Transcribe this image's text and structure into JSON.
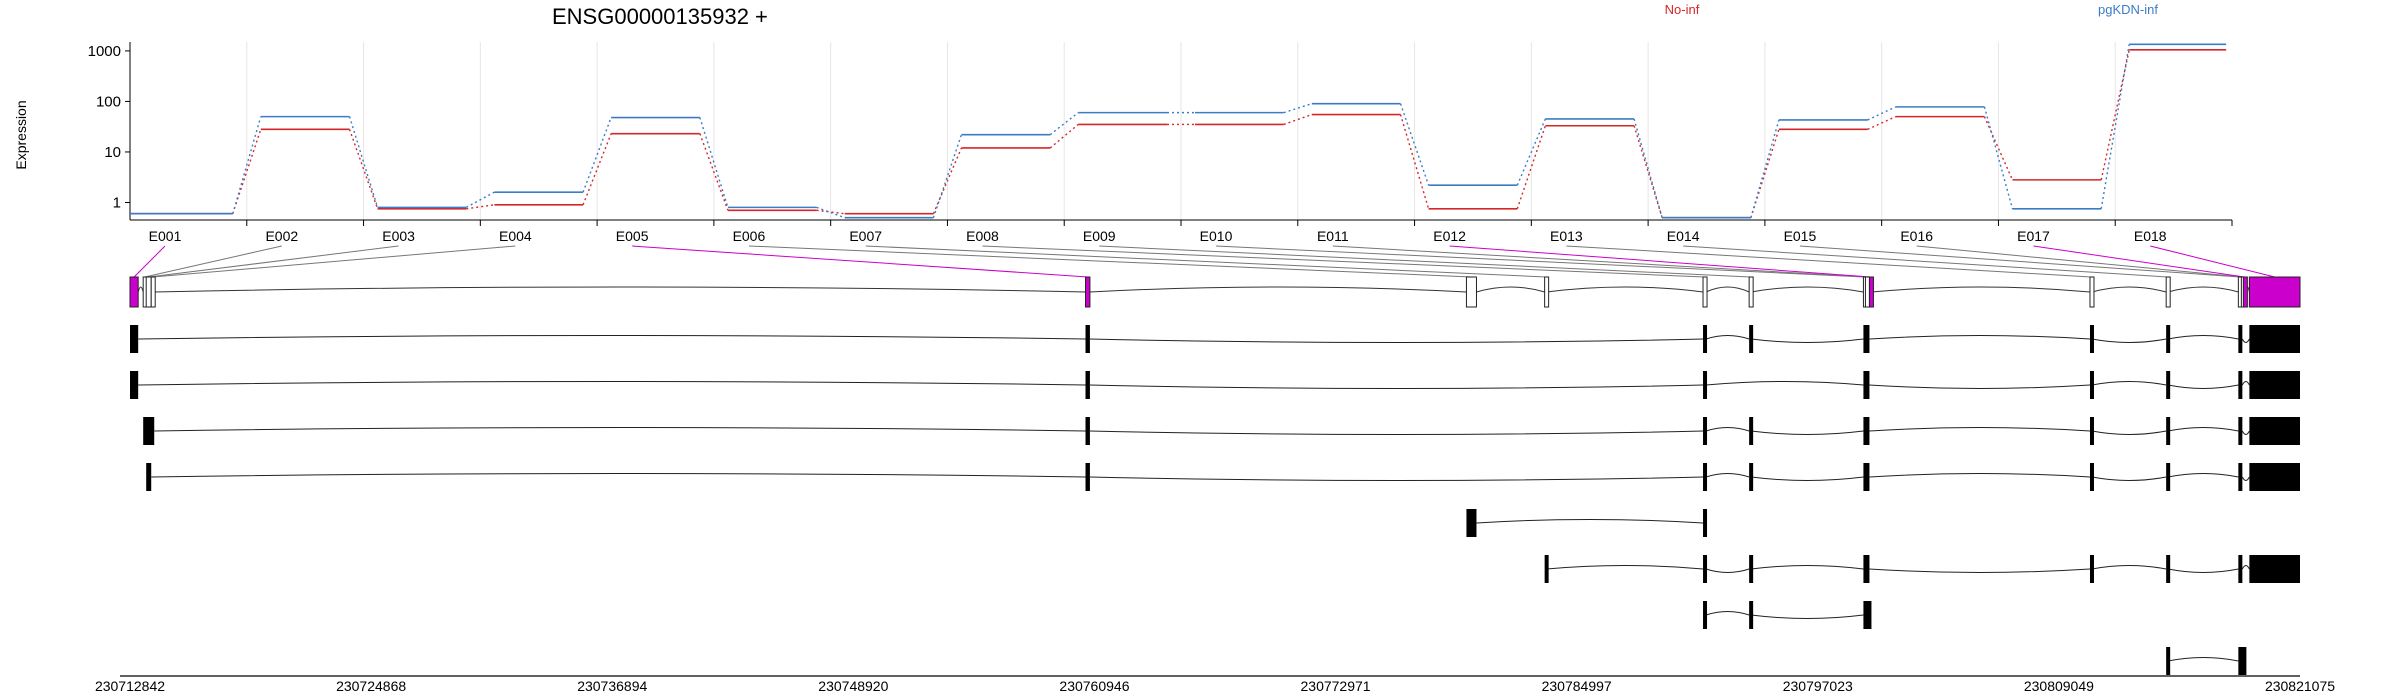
{
  "chart_data": {
    "type": "line",
    "title": "ENSG00000135932 +",
    "ylabel": "Expression",
    "y_scale": "log",
    "ylim": [
      0.45,
      1500
    ],
    "y_ticks": [
      {
        "value": 1,
        "label": "1"
      },
      {
        "value": 10,
        "label": "10"
      },
      {
        "value": 100,
        "label": "100"
      },
      {
        "value": 1000,
        "label": "1000"
      }
    ],
    "categories": [
      "E001",
      "E002",
      "E003",
      "E004",
      "E005",
      "E006",
      "E007",
      "E008",
      "E009",
      "E010",
      "E011",
      "E012",
      "E013",
      "E014",
      "E015",
      "E016",
      "E017",
      "E018"
    ],
    "series": [
      {
        "name": "No-inf",
        "color": "#d62728",
        "values": [
          0.6,
          28,
          0.75,
          0.9,
          23,
          0.7,
          0.6,
          12,
          35,
          35,
          55,
          0.75,
          33,
          0.5,
          28,
          50,
          2.8,
          1050
        ]
      },
      {
        "name": "pgKDN-inf",
        "color": "#3b7dc4",
        "values": [
          0.6,
          50,
          0.8,
          1.6,
          48,
          0.8,
          0.5,
          22,
          60,
          60,
          90,
          2.2,
          45,
          0.5,
          43,
          78,
          0.75,
          1350
        ]
      }
    ],
    "legend": "top-right",
    "grid": "vertical",
    "link_color": "#cc00cc",
    "gene_model": {
      "coordinate_range": [
        230712842,
        230821075
      ],
      "coordinate_ticks": [
        230712842,
        230724868,
        230736894,
        230748920,
        230760946,
        230772971,
        230784997,
        230797023,
        230809049,
        230821075
      ],
      "exons": [
        {
          "id": "E001",
          "start": 230712842,
          "end": 230713250,
          "highlight": true
        },
        {
          "id": "E002",
          "start": 230713500,
          "end": 230713650,
          "highlight": false
        },
        {
          "id": "E003",
          "start": 230713650,
          "end": 230713900,
          "highlight": false
        },
        {
          "id": "E004",
          "start": 230713900,
          "end": 230714050,
          "highlight": false
        },
        {
          "id": "E005",
          "start": 230760500,
          "end": 230760720,
          "highlight": true
        },
        {
          "id": "E006",
          "start": 230779500,
          "end": 230780000,
          "highlight": false
        },
        {
          "id": "E007",
          "start": 230783400,
          "end": 230783500,
          "highlight": false
        },
        {
          "id": "E008",
          "start": 230791300,
          "end": 230791450,
          "highlight": false
        },
        {
          "id": "E009",
          "start": 230793600,
          "end": 230793700,
          "highlight": false
        },
        {
          "id": "E010",
          "start": 230799300,
          "end": 230799400,
          "highlight": false
        },
        {
          "id": "E011",
          "start": 230799400,
          "end": 230799600,
          "highlight": false
        },
        {
          "id": "E012",
          "start": 230799600,
          "end": 230799700,
          "highlight": true
        },
        {
          "id": "E013",
          "start": 230810600,
          "end": 230810700,
          "highlight": false
        },
        {
          "id": "E014",
          "start": 230814400,
          "end": 230814500,
          "highlight": false
        },
        {
          "id": "E015",
          "start": 230818000,
          "end": 230818150,
          "highlight": false
        },
        {
          "id": "E016",
          "start": 230818150,
          "end": 230818250,
          "highlight": false
        },
        {
          "id": "E017",
          "start": 230818250,
          "end": 230818350,
          "highlight": true
        },
        {
          "id": "E018",
          "start": 230818550,
          "end": 230821075,
          "highlight": true
        }
      ],
      "transcripts": [
        [
          [
            230712842,
            230713250
          ],
          [
            230760500,
            230760720
          ],
          [
            230791300,
            230791450
          ],
          [
            230793600,
            230793700
          ],
          [
            230799300,
            230799600
          ],
          [
            230810600,
            230810700
          ],
          [
            230814400,
            230814500
          ],
          [
            230818000,
            230818200
          ],
          [
            230818550,
            230821075
          ]
        ],
        [
          [
            230712842,
            230713250
          ],
          [
            230760500,
            230760720
          ],
          [
            230791300,
            230791450
          ],
          [
            230799300,
            230799600
          ],
          [
            230810600,
            230810700
          ],
          [
            230814400,
            230814500
          ],
          [
            230818000,
            230818200
          ],
          [
            230818550,
            230821075
          ]
        ],
        [
          [
            230713500,
            230714050
          ],
          [
            230760500,
            230760720
          ],
          [
            230791300,
            230791450
          ],
          [
            230793600,
            230793700
          ],
          [
            230799300,
            230799600
          ],
          [
            230810600,
            230810700
          ],
          [
            230814400,
            230814500
          ],
          [
            230818000,
            230818200
          ],
          [
            230818550,
            230821075
          ]
        ],
        [
          [
            230713650,
            230713900
          ],
          [
            230760500,
            230760720
          ],
          [
            230791300,
            230791450
          ],
          [
            230793600,
            230793700
          ],
          [
            230799300,
            230799600
          ],
          [
            230810600,
            230810700
          ],
          [
            230814400,
            230814500
          ],
          [
            230818000,
            230818200
          ],
          [
            230818550,
            230821075
          ]
        ],
        [
          [
            230779500,
            230780000
          ],
          [
            230791300,
            230791450
          ]
        ],
        [
          [
            230783400,
            230783500
          ],
          [
            230791300,
            230791450
          ],
          [
            230793600,
            230793700
          ],
          [
            230799300,
            230799600
          ],
          [
            230810600,
            230810700
          ],
          [
            230814400,
            230814500
          ],
          [
            230818000,
            230818200
          ],
          [
            230818550,
            230821075
          ]
        ],
        [
          [
            230791300,
            230791450
          ],
          [
            230793600,
            230793700
          ],
          [
            230799300,
            230799700
          ]
        ],
        [
          [
            230814400,
            230814500
          ],
          [
            230818000,
            230818400
          ]
        ]
      ]
    }
  }
}
